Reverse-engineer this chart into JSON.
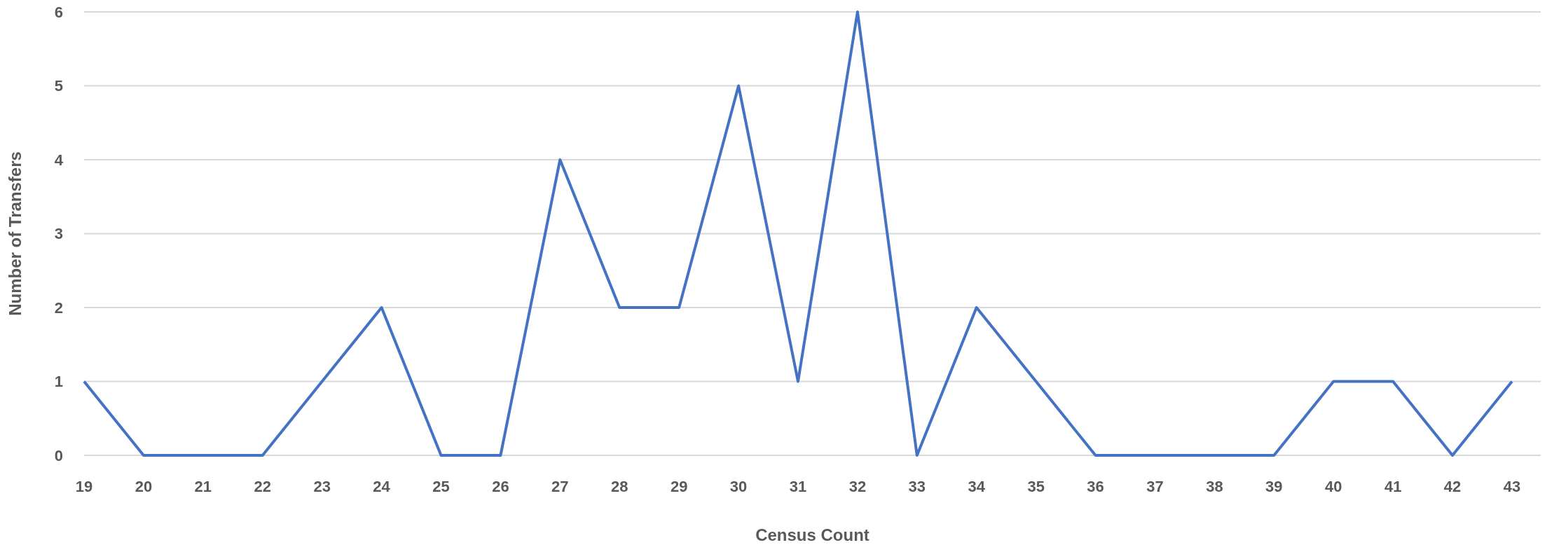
{
  "chart_data": {
    "type": "line",
    "xlabel": "Census Count",
    "ylabel": "Number of Transfers",
    "categories": [
      "19",
      "20",
      "21",
      "22",
      "23",
      "24",
      "25",
      "26",
      "27",
      "28",
      "29",
      "30",
      "31",
      "32",
      "33",
      "34",
      "35",
      "36",
      "37",
      "38",
      "39",
      "40",
      "41",
      "42",
      "43"
    ],
    "series": [
      {
        "color": "#4472c4",
        "values": [
          1,
          0,
          0,
          0,
          1,
          2,
          0,
          0,
          4,
          2,
          2,
          5,
          1,
          6,
          0,
          2,
          1,
          0,
          0,
          0,
          0,
          1,
          1,
          0,
          1
        ]
      }
    ],
    "ylim": [
      0,
      6
    ],
    "yticks": [
      0,
      1,
      2,
      3,
      4,
      5,
      6
    ],
    "grid": "y",
    "marker": "none",
    "line_style": "solid"
  }
}
